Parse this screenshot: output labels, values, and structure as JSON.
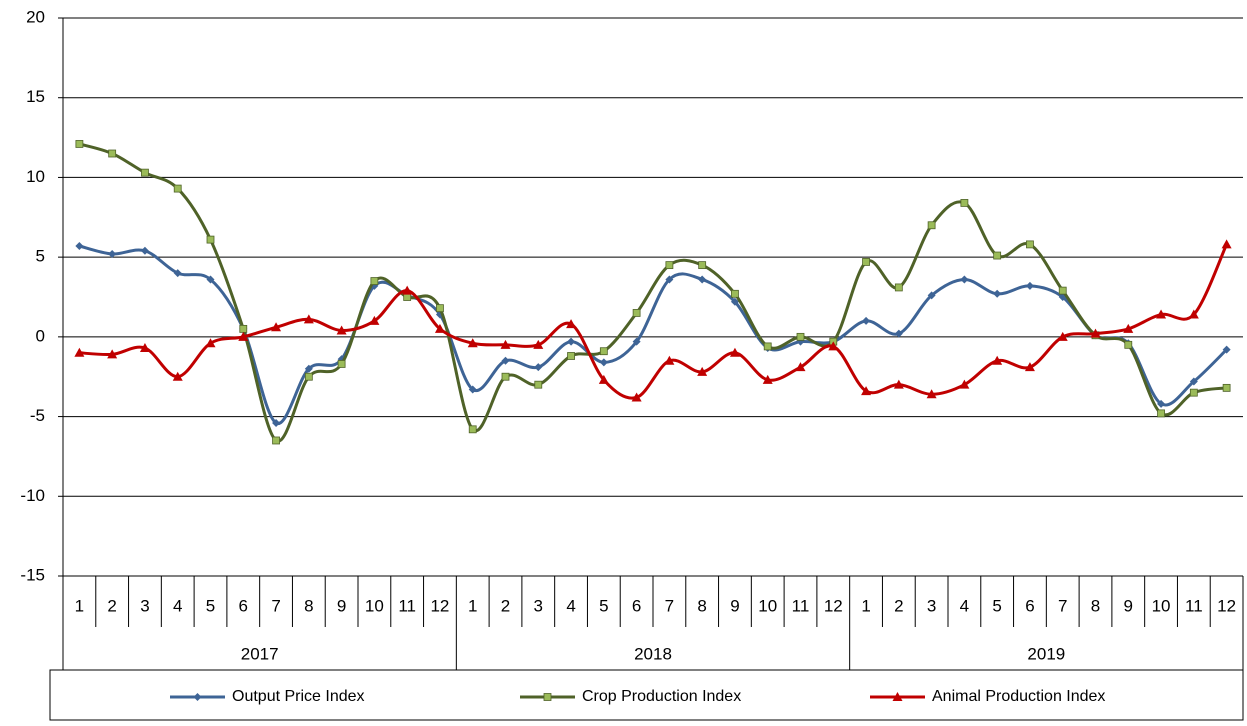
{
  "chart_data": {
    "type": "line",
    "categories": [
      "1",
      "2",
      "3",
      "4",
      "5",
      "6",
      "7",
      "8",
      "9",
      "10",
      "11",
      "12",
      "1",
      "2",
      "3",
      "4",
      "5",
      "6",
      "7",
      "8",
      "9",
      "10",
      "11",
      "12",
      "1",
      "2",
      "3",
      "4",
      "5",
      "6",
      "7",
      "8",
      "9",
      "10",
      "11",
      "12"
    ],
    "years": [
      "2017",
      "2018",
      "2019"
    ],
    "series": [
      {
        "name": "Output Price Index",
        "color": "#3e6496",
        "marker": "diamond",
        "values": [
          5.7,
          5.2,
          5.4,
          4.0,
          3.6,
          0.5,
          -5.4,
          -2.0,
          -1.4,
          3.2,
          2.6,
          1.4,
          -3.3,
          -1.5,
          -1.9,
          -0.3,
          -1.6,
          -0.3,
          3.6,
          3.6,
          2.2,
          -0.7,
          -0.3,
          -0.3,
          1.0,
          0.2,
          2.6,
          3.6,
          2.7,
          3.2,
          2.5,
          0.1,
          -0.4,
          -4.2,
          -2.8,
          -0.8
        ]
      },
      {
        "name": "Crop Production Index",
        "color": "#4f6228",
        "marker": "square",
        "values": [
          12.1,
          11.5,
          10.3,
          9.3,
          6.1,
          0.5,
          -6.5,
          -2.5,
          -1.7,
          3.5,
          2.5,
          1.8,
          -5.8,
          -2.5,
          -3.0,
          -1.2,
          -0.9,
          1.5,
          4.5,
          4.5,
          2.7,
          -0.6,
          0.0,
          -0.3,
          4.7,
          3.1,
          7.0,
          8.4,
          5.1,
          5.8,
          2.9,
          0.1,
          -0.5,
          -4.8,
          -3.5,
          -3.2
        ]
      },
      {
        "name": "Animal Production Index",
        "color": "#c00000",
        "marker": "triangle",
        "values": [
          -1.0,
          -1.1,
          -0.7,
          -2.5,
          -0.4,
          0.0,
          0.6,
          1.1,
          0.4,
          1.0,
          2.9,
          0.5,
          -0.4,
          -0.5,
          -0.5,
          0.8,
          -2.7,
          -3.8,
          -1.5,
          -2.2,
          -1.0,
          -2.7,
          -1.9,
          -0.6,
          -3.4,
          -3.0,
          -3.6,
          -3.0,
          -1.5,
          -1.9,
          0.0,
          0.2,
          0.5,
          1.4,
          1.4,
          5.8
        ]
      }
    ],
    "ylim": [
      -15,
      20
    ],
    "yticks": [
      -15,
      -10,
      -5,
      0,
      5,
      10,
      15,
      20
    ],
    "grid": true,
    "smooth": true,
    "legend": "bottom"
  }
}
